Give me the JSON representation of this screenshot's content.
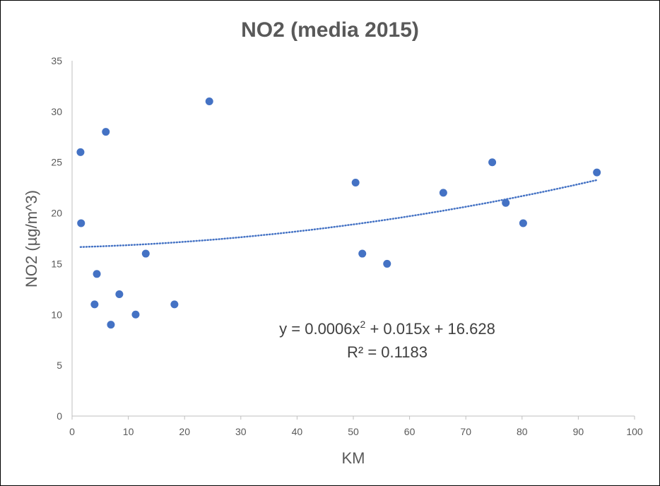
{
  "chart_data": {
    "type": "scatter",
    "title": "NO2 (media 2015)",
    "xlabel": "KM",
    "ylabel": "NO2 (µg/m^3)",
    "xlim": [
      0,
      100
    ],
    "ylim": [
      0,
      35
    ],
    "x_ticks": [
      "0",
      "10",
      "20",
      "30",
      "40",
      "50",
      "60",
      "70",
      "80",
      "90",
      "100"
    ],
    "y_ticks": [
      "0",
      "5",
      "10",
      "15",
      "20",
      "25",
      "30",
      "35"
    ],
    "grid": false,
    "series": [
      {
        "color": "#4472C4",
        "points": [
          {
            "x": 1.5,
            "y": 26
          },
          {
            "x": 1.6,
            "y": 19
          },
          {
            "x": 4.0,
            "y": 11
          },
          {
            "x": 4.4,
            "y": 14
          },
          {
            "x": 6.0,
            "y": 28
          },
          {
            "x": 6.9,
            "y": 9
          },
          {
            "x": 8.4,
            "y": 12
          },
          {
            "x": 11.3,
            "y": 10
          },
          {
            "x": 13.1,
            "y": 16
          },
          {
            "x": 18.2,
            "y": 11
          },
          {
            "x": 24.4,
            "y": 31
          },
          {
            "x": 50.4,
            "y": 23
          },
          {
            "x": 51.6,
            "y": 16
          },
          {
            "x": 56.0,
            "y": 15
          },
          {
            "x": 66.0,
            "y": 22
          },
          {
            "x": 74.7,
            "y": 25
          },
          {
            "x": 77.1,
            "y": 21
          },
          {
            "x": 80.2,
            "y": 19
          },
          {
            "x": 93.3,
            "y": 24
          }
        ]
      }
    ],
    "trendline": {
      "type": "polynomial",
      "coefficients": [
        0.0006,
        0.015,
        16.628
      ],
      "x_range": [
        1.5,
        93.3
      ],
      "style": "dotted",
      "color": "#4472C4",
      "equation_prefix": "y = 0.0006x",
      "equation_sup": "2",
      "equation_suffix": " + 0.015x + 16.628",
      "r_squared_text": "R² = 0.1183"
    }
  }
}
